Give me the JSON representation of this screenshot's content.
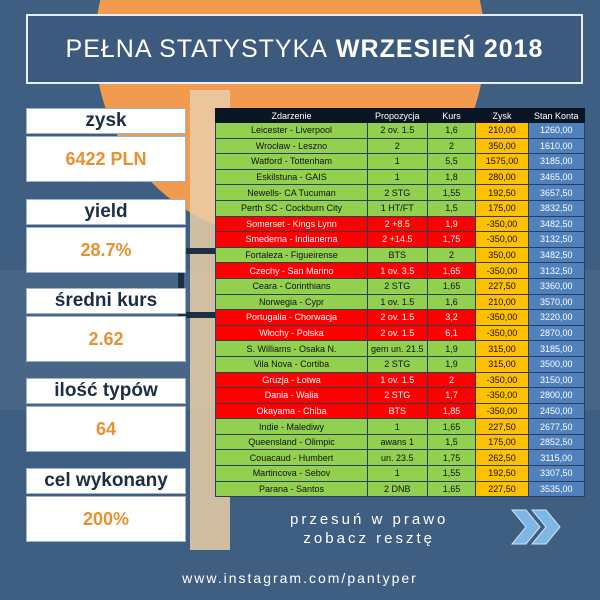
{
  "title": {
    "normal": "PEŁNA STATYSTYKA",
    "bold": "WRZESIEŃ 2018"
  },
  "stats": [
    {
      "label": "zysk",
      "value": "6422 PLN"
    },
    {
      "label": "yield",
      "value": "28.7%"
    },
    {
      "label": "średni kurs",
      "value": "2.62"
    },
    {
      "label": "ilość typów",
      "value": "64"
    },
    {
      "label": "cel wykonany",
      "value": "200%"
    }
  ],
  "table": {
    "headers": [
      "Zdarzenie",
      "Propozycja",
      "Kurs",
      "Zysk",
      "Stan Konta"
    ],
    "rows": [
      {
        "result": "win",
        "event": "Leicester - Liverpool",
        "prop": "2 ov. 1.5",
        "kurs": "1,6",
        "zysk": "210,00",
        "stan": "1260,00"
      },
      {
        "result": "win",
        "event": "Wrocław - Leszno",
        "prop": "2",
        "kurs": "2",
        "zysk": "350,00",
        "stan": "1610,00"
      },
      {
        "result": "win",
        "event": "Watford - Tottenham",
        "prop": "1",
        "kurs": "5,5",
        "zysk": "1575,00",
        "stan": "3185,00"
      },
      {
        "result": "win",
        "event": "Eskilstuna - GAIS",
        "prop": "1",
        "kurs": "1,8",
        "zysk": "280,00",
        "stan": "3465,00"
      },
      {
        "result": "win",
        "event": "Newells- CA Tucuman",
        "prop": "2 STG",
        "kurs": "1,55",
        "zysk": "192,50",
        "stan": "3657,50"
      },
      {
        "result": "win",
        "event": "Perth SC - Cockburn City",
        "prop": "1 HT/FT",
        "kurs": "1,5",
        "zysk": "175,00",
        "stan": "3832,50"
      },
      {
        "result": "loss",
        "event": "Somerset - Kings Lynn",
        "prop": "2 +8.5",
        "kurs": "1,9",
        "zysk": "-350,00",
        "stan": "3482,50"
      },
      {
        "result": "loss",
        "event": "Smederna - Indianerna",
        "prop": "2 +14.5",
        "kurs": "1,75",
        "zysk": "-350,00",
        "stan": "3132,50"
      },
      {
        "result": "win",
        "event": "Fortaleza - Figueirense",
        "prop": "BTS",
        "kurs": "2",
        "zysk": "350,00",
        "stan": "3482,50"
      },
      {
        "result": "loss",
        "event": "Czechy - San Marino",
        "prop": "1 ov. 3.5",
        "kurs": "1,65",
        "zysk": "-350,00",
        "stan": "3132,50"
      },
      {
        "result": "win",
        "event": "Ceara - Corinthians",
        "prop": "2 STG",
        "kurs": "1,65",
        "zysk": "227,50",
        "stan": "3360,00"
      },
      {
        "result": "win",
        "event": "Norwegia - Cypr",
        "prop": "1 ov. 1.5",
        "kurs": "1,6",
        "zysk": "210,00",
        "stan": "3570,00"
      },
      {
        "result": "loss",
        "event": "Portugalia - Chorwacja",
        "prop": "2 ov. 1.5",
        "kurs": "3,2",
        "zysk": "-350,00",
        "stan": "3220,00"
      },
      {
        "result": "loss",
        "event": "Włochy - Polska",
        "prop": "2 ov. 1.5",
        "kurs": "6,1",
        "zysk": "-350,00",
        "stan": "2870,00"
      },
      {
        "result": "win",
        "event": "S. Williams - Osaka N.",
        "prop": "gem un. 21.5",
        "kurs": "1,9",
        "zysk": "315,00",
        "stan": "3185,00"
      },
      {
        "result": "win",
        "event": "Vila Nova - Cortiba",
        "prop": "2 STG",
        "kurs": "1,9",
        "zysk": "315,00",
        "stan": "3500,00"
      },
      {
        "result": "loss",
        "event": "Gruzja - Łotwa",
        "prop": "1 ov. 1.5",
        "kurs": "2",
        "zysk": "-350,00",
        "stan": "3150,00"
      },
      {
        "result": "loss",
        "event": "Dania - Walia",
        "prop": "2 STG",
        "kurs": "1,7",
        "zysk": "-350,00",
        "stan": "2800,00"
      },
      {
        "result": "loss",
        "event": "Okayama - Chiba",
        "prop": "BTS",
        "kurs": "1,85",
        "zysk": "-350,00",
        "stan": "2450,00"
      },
      {
        "result": "win",
        "event": "Indie - Malediwy",
        "prop": "1",
        "kurs": "1,65",
        "zysk": "227,50",
        "stan": "2677,50"
      },
      {
        "result": "win",
        "event": "Queensland - Olimpic",
        "prop": "awans 1",
        "kurs": "1,5",
        "zysk": "175,00",
        "stan": "2852,50"
      },
      {
        "result": "win",
        "event": "Couacaud - Humbert",
        "prop": "un. 23.5",
        "kurs": "1,75",
        "zysk": "262,50",
        "stan": "3115,00"
      },
      {
        "result": "win",
        "event": "Martincova - Sebov",
        "prop": "1",
        "kurs": "1,55",
        "zysk": "192,50",
        "stan": "3307,50"
      },
      {
        "result": "win",
        "event": "Parana - Santos",
        "prop": "2 DNB",
        "kurs": "1,65",
        "zysk": "227,50",
        "stan": "3535,00"
      }
    ]
  },
  "footer": {
    "line1": "przesuń w prawo",
    "line2": "zobacz resztę",
    "arrow_icon": "double-chevron-right-icon",
    "instagram": "www.instagram.com/pantyper"
  },
  "colors": {
    "background": "#3f5f82",
    "accent_orange": "#f29a4e",
    "win": "#92d050",
    "loss": "#ff0000",
    "profit": "#ffc000",
    "balance": "#4f81bd"
  }
}
